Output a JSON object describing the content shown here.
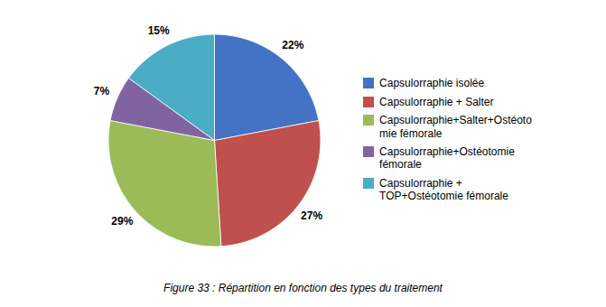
{
  "chart_data": {
    "type": "pie",
    "caption": "Figure 33 : Répartition en fonction des types du traitement",
    "categories": [
      "Capsulorraphie isolée",
      "Capsulorraphie + Salter",
      "Capsulorraphie+Salter+Ostéoto\nmie fémorale",
      "Capsulorraphie+Ostéotomie\nfémorale",
      "Capsulorraphie +\nTOP+Ostéotomie fémorale"
    ],
    "values": [
      22,
      27,
      29,
      7,
      15
    ],
    "value_labels": [
      "22%",
      "27%",
      "29%",
      "7%",
      "15%"
    ],
    "colors": [
      "#4472C4",
      "#C0504D",
      "#9BBB59",
      "#8064A2",
      "#4BACC6"
    ],
    "data_labels": true,
    "legend": "right"
  }
}
